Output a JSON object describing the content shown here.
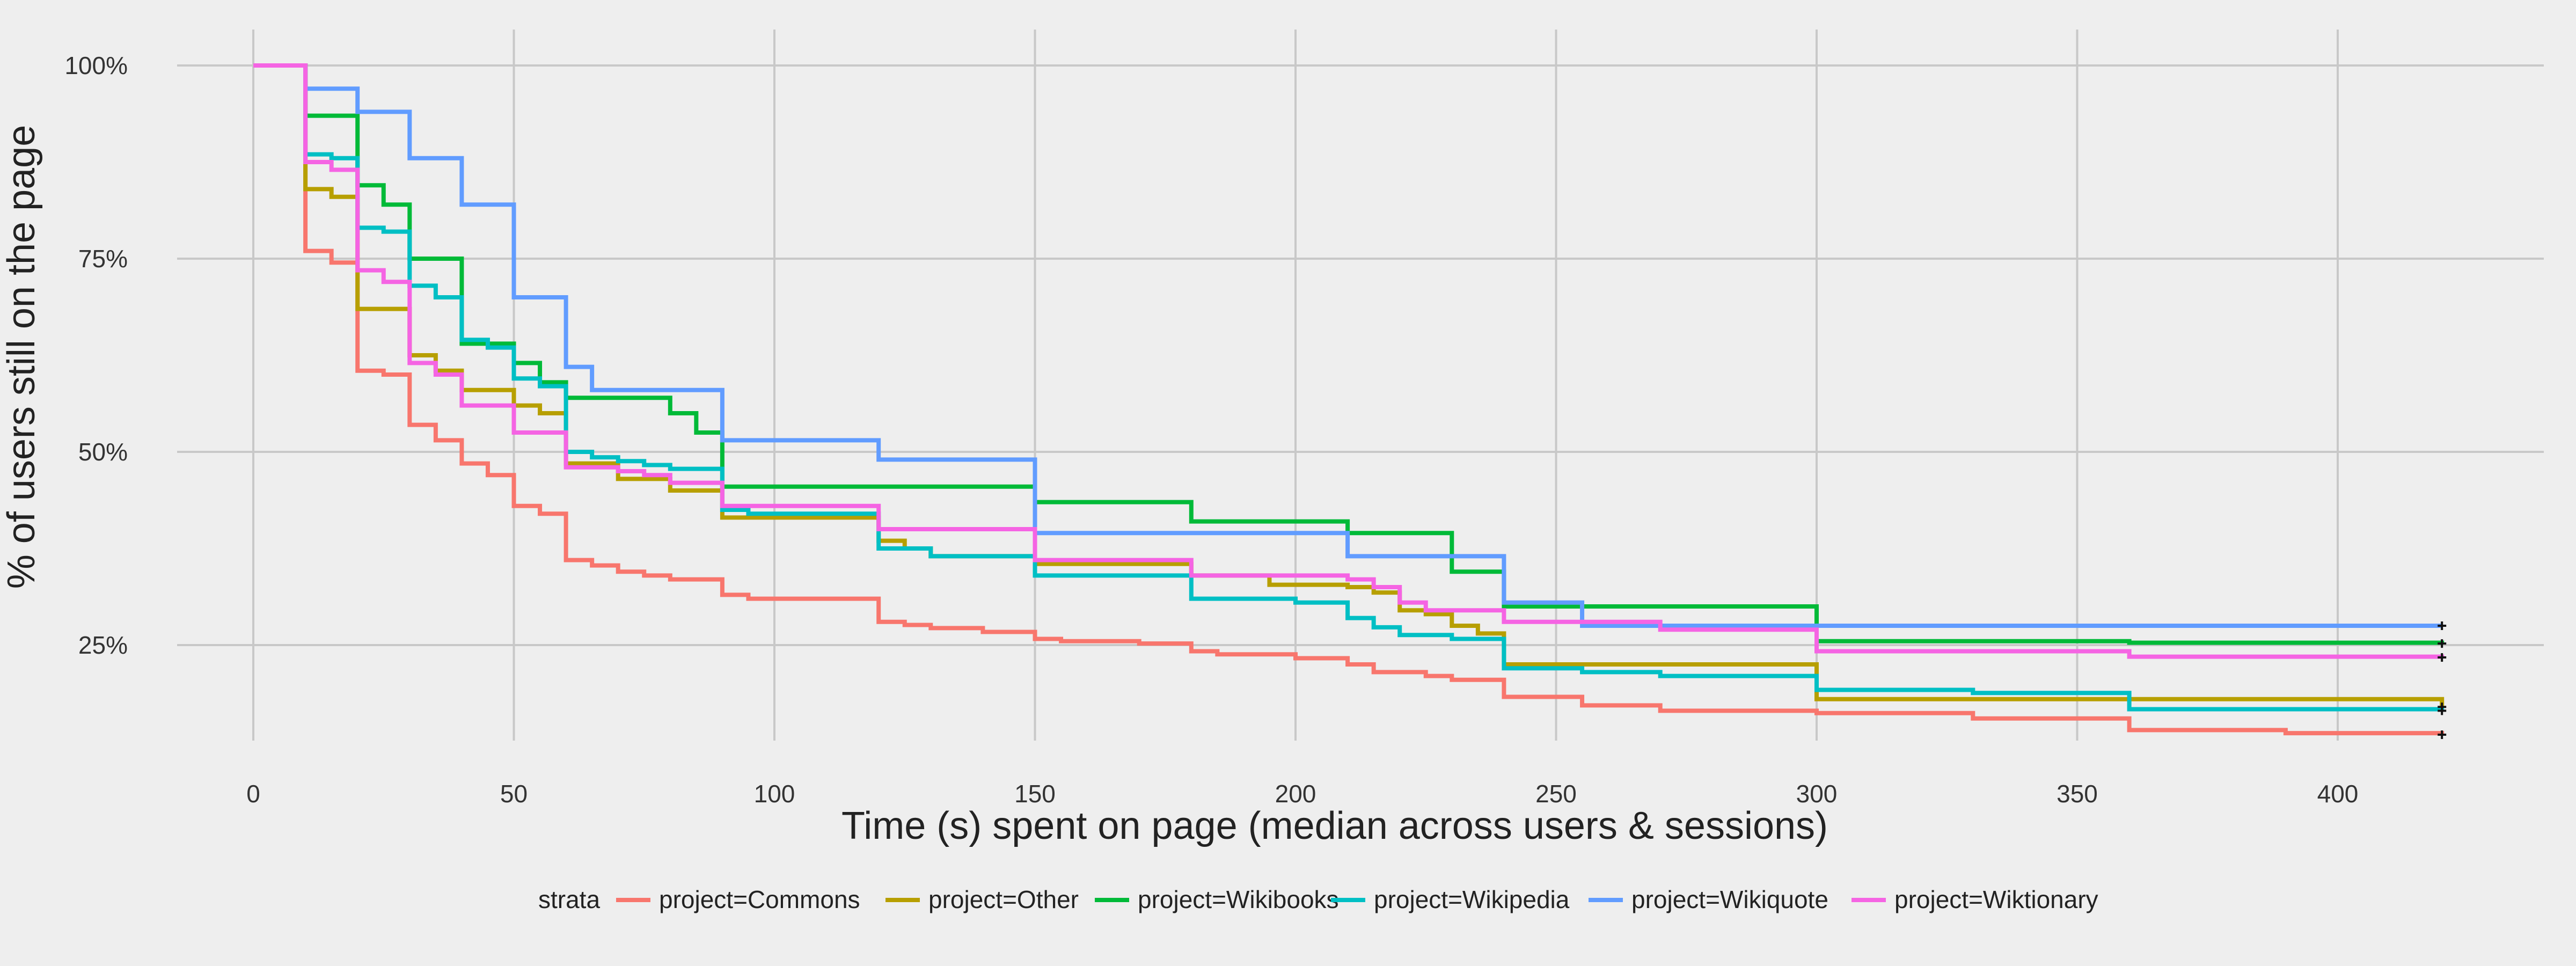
{
  "chart_data": {
    "type": "line",
    "step": true,
    "xlabel": "Time (s) spent on page (median across users & sessions)",
    "ylabel": "% of users still on the page",
    "xlim": [
      -20,
      440
    ],
    "ylim": [
      10,
      105
    ],
    "x_ticks": [
      0,
      50,
      100,
      150,
      200,
      250,
      300,
      350,
      400
    ],
    "x_tick_labels": [
      "0",
      "50",
      "100",
      "150",
      "200",
      "250",
      "300",
      "350",
      "400"
    ],
    "y_ticks": [
      100,
      75,
      50,
      25
    ],
    "y_tick_labels": [
      "100%",
      "75%",
      "50%",
      "25%"
    ],
    "grid": true,
    "legend": {
      "position": "bottom",
      "title": "strata"
    },
    "series": [
      {
        "name": "project=Commons",
        "color": "#F8766D",
        "x": [
          0,
          10,
          15,
          20,
          25,
          30,
          35,
          40,
          45,
          50,
          55,
          60,
          65,
          70,
          75,
          80,
          90,
          95,
          120,
          125,
          130,
          140,
          150,
          155,
          170,
          180,
          185,
          200,
          210,
          215,
          225,
          230,
          240,
          255,
          270,
          300,
          330,
          360,
          390,
          420
        ],
        "y": [
          100,
          76,
          74.5,
          60.5,
          60,
          53.5,
          51.5,
          48.5,
          47,
          43,
          42,
          36,
          35.3,
          34.5,
          34,
          33.5,
          31.5,
          31,
          28,
          27.6,
          27.2,
          26.7,
          25.8,
          25.5,
          25.2,
          24.2,
          23.8,
          23.3,
          22.5,
          21.5,
          21,
          20.5,
          18.3,
          17.2,
          16.5,
          16.2,
          15.5,
          14,
          13.6,
          13.4
        ]
      },
      {
        "name": "project=Other",
        "color": "#B79F00",
        "x": [
          0,
          10,
          15,
          20,
          30,
          35,
          40,
          50,
          55,
          60,
          70,
          80,
          90,
          120,
          125,
          130,
          150,
          180,
          195,
          210,
          215,
          220,
          225,
          230,
          235,
          240,
          300,
          420
        ],
        "y": [
          100,
          84,
          83,
          68.5,
          62.5,
          60.5,
          58,
          56,
          55,
          48.5,
          46.5,
          45,
          41.5,
          38.5,
          37.5,
          36.5,
          35.5,
          34,
          32.8,
          32.5,
          31.8,
          29.5,
          29,
          27.5,
          26.5,
          22.5,
          18,
          17
        ]
      },
      {
        "name": "project=Wikibooks",
        "color": "#00BA38",
        "x": [
          0,
          10,
          20,
          25,
          30,
          40,
          50,
          55,
          60,
          80,
          85,
          90,
          150,
          180,
          210,
          230,
          240,
          300,
          360,
          420
        ],
        "y": [
          100,
          93.5,
          84.5,
          82,
          75,
          64,
          61.5,
          59,
          57,
          55,
          52.5,
          45.5,
          43.5,
          41,
          39.5,
          34.5,
          30,
          25.5,
          25.3,
          25.2
        ]
      },
      {
        "name": "project=Wikipedia",
        "color": "#00BFC4",
        "x": [
          0,
          10,
          15,
          20,
          25,
          30,
          35,
          40,
          45,
          50,
          55,
          60,
          65,
          70,
          75,
          80,
          90,
          95,
          120,
          130,
          150,
          180,
          200,
          210,
          215,
          220,
          230,
          240,
          255,
          270,
          300,
          330,
          360,
          420
        ],
        "y": [
          100,
          88.5,
          88,
          79,
          78.5,
          71.5,
          70,
          64.5,
          63.5,
          59.5,
          58.5,
          50,
          49.3,
          48.8,
          48.3,
          47.8,
          42.5,
          42,
          37.5,
          36.5,
          34,
          31,
          30.5,
          28.5,
          27.3,
          26.3,
          25.8,
          22,
          21.5,
          21,
          19.2,
          18.8,
          16.7,
          16.5
        ]
      },
      {
        "name": "project=Wikiquote",
        "color": "#619CFF",
        "x": [
          0,
          10,
          20,
          30,
          40,
          50,
          60,
          65,
          90,
          120,
          150,
          210,
          240,
          255,
          300,
          420
        ],
        "y": [
          100,
          97,
          94,
          88,
          82,
          70,
          61,
          58,
          51.5,
          49,
          39.5,
          36.5,
          30.5,
          27.5,
          27.5,
          27.5
        ]
      },
      {
        "name": "project=Wiktionary",
        "color": "#F564E3",
        "x": [
          0,
          10,
          15,
          20,
          25,
          30,
          35,
          40,
          50,
          60,
          70,
          75,
          80,
          90,
          120,
          150,
          180,
          210,
          215,
          220,
          225,
          240,
          270,
          300,
          360,
          420
        ],
        "y": [
          100,
          87.5,
          86.5,
          73.5,
          72,
          61.5,
          60,
          56,
          52.5,
          48,
          47.5,
          47,
          46,
          43,
          40,
          36,
          34,
          33.5,
          32.5,
          30.5,
          29.5,
          28,
          27,
          24.2,
          23.5,
          23.4
        ]
      }
    ]
  }
}
